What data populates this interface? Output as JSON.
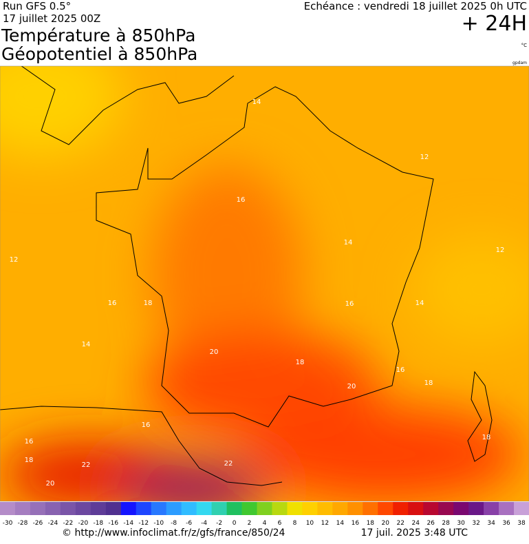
{
  "header": {
    "run": "Run GFS 0.5°",
    "date": "17 juillet 2025 00Z",
    "title_line1": "Température à 850hPa",
    "title_line2": "Géopotentiel à 850hPa",
    "echeance": "Echéance : vendredi 18 juillet 2025 0h UTC",
    "lead": "+ 24H",
    "unit": "°C",
    "credit": "gpdam"
  },
  "map": {
    "contour_labels": [
      "14",
      "12",
      "16",
      "12",
      "14",
      "12",
      "16",
      "18",
      "14",
      "16",
      "14",
      "20",
      "18",
      "16",
      "20",
      "18",
      "16",
      "16",
      "18",
      "18",
      "22",
      "22",
      "20"
    ]
  },
  "colorbar": {
    "ticks": [
      -30,
      -28,
      -26,
      -24,
      -22,
      -20,
      -18,
      -16,
      -14,
      -12,
      -10,
      -8,
      -6,
      -4,
      -2,
      0,
      2,
      4,
      6,
      8,
      10,
      12,
      14,
      16,
      18,
      20,
      22,
      24,
      26,
      28,
      30,
      32,
      34,
      36,
      38
    ],
    "colors": [
      "#b48cc8",
      "#a57dc0",
      "#9670b8",
      "#8862b0",
      "#7a55a8",
      "#6c48a0",
      "#5e3c98",
      "#503090",
      "#1414ff",
      "#1e46ff",
      "#2878ff",
      "#2c9cff",
      "#30bcff",
      "#34d8f0",
      "#30d0b0",
      "#20c060",
      "#40c830",
      "#80d020",
      "#b8d810",
      "#f0e000",
      "#ffd000",
      "#ffbc00",
      "#ffa800",
      "#ff9000",
      "#ff7000",
      "#ff4800",
      "#f02000",
      "#d81010",
      "#b80830",
      "#980850",
      "#7a0870",
      "#6a1888",
      "#8840a8",
      "#a870c0",
      "#c8a0d8"
    ]
  },
  "footer": {
    "url": "© http://www.infoclimat.fr/z/gfs/france/850/24",
    "time": "17 juil. 2025  3:48 UTC"
  }
}
